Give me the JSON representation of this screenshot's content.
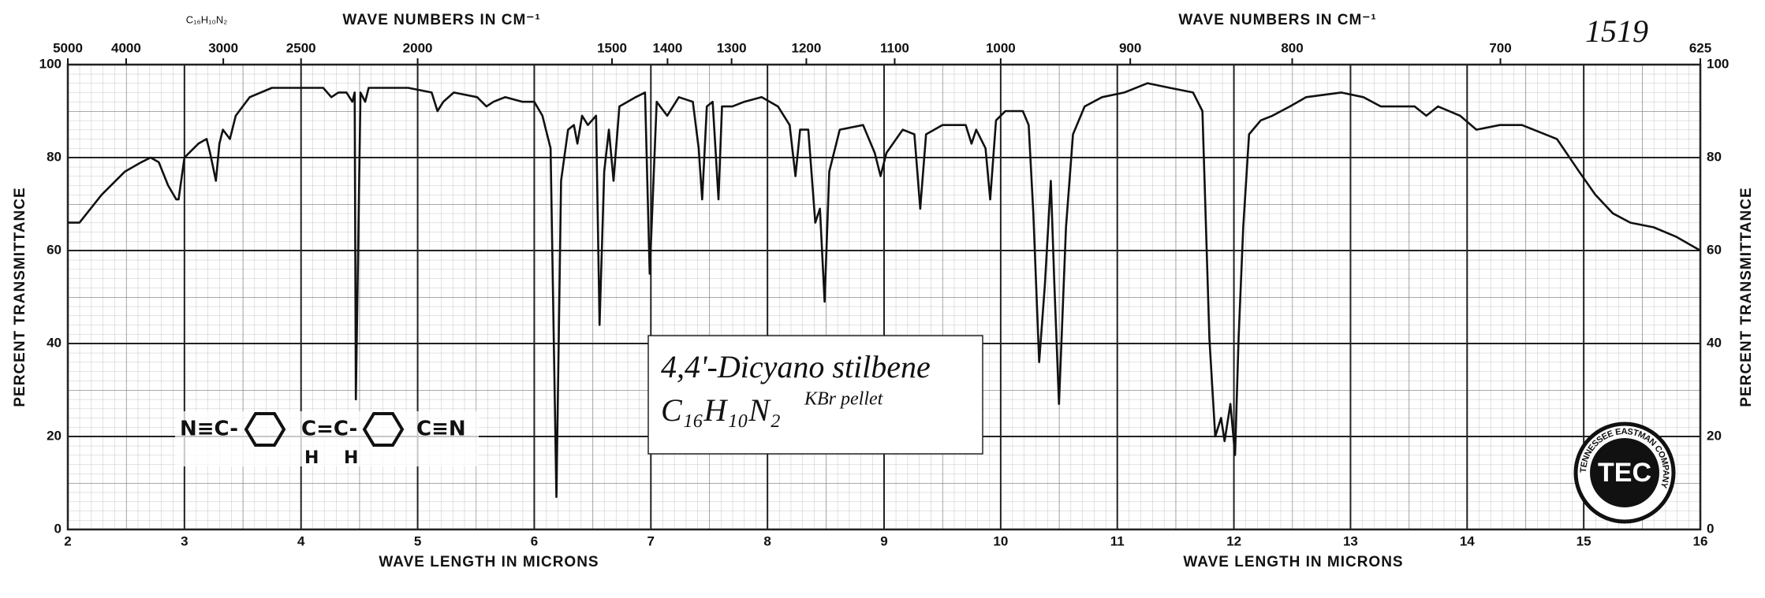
{
  "chart_data": {
    "type": "line",
    "xlabel": "WAVE LENGTH IN MICRONS",
    "x2label": "WAVE NUMBERS IN CM⁻¹",
    "ylabel": "PERCENT TRANSMITTANCE",
    "xlim": [
      2,
      16
    ],
    "xticks": [
      2,
      3,
      4,
      5,
      6,
      7,
      8,
      9,
      10,
      11,
      12,
      13,
      14,
      15,
      16
    ],
    "x2_scale": "reciprocal",
    "x2ticks": [
      5000,
      4000,
      3000,
      2500,
      2000,
      1500,
      1400,
      1300,
      1200,
      1100,
      1000,
      900,
      800,
      700,
      625
    ],
    "ylim": [
      0,
      100
    ],
    "yticks": [
      0,
      20,
      40,
      60,
      80,
      100
    ],
    "grid": true,
    "x": [
      2.0,
      2.1,
      2.29,
      2.49,
      2.63,
      2.71,
      2.78,
      2.86,
      2.93,
      2.95,
      3.0,
      3.12,
      3.19,
      3.22,
      3.27,
      3.3,
      3.33,
      3.39,
      3.44,
      3.56,
      3.75,
      3.97,
      4.19,
      4.26,
      4.32,
      4.39,
      4.44,
      4.46,
      4.47,
      4.51,
      4.55,
      4.58,
      4.92,
      5.12,
      5.17,
      5.22,
      5.31,
      5.51,
      5.59,
      5.65,
      5.75,
      5.9,
      6.0,
      6.07,
      6.14,
      6.19,
      6.23,
      6.29,
      6.34,
      6.37,
      6.41,
      6.46,
      6.53,
      6.56,
      6.6,
      6.64,
      6.68,
      6.73,
      6.87,
      6.95,
      6.99,
      7.05,
      7.14,
      7.24,
      7.36,
      7.41,
      7.44,
      7.48,
      7.53,
      7.58,
      7.61,
      7.7,
      7.8,
      7.95,
      8.09,
      8.19,
      8.24,
      8.28,
      8.35,
      8.41,
      8.45,
      8.49,
      8.53,
      8.62,
      8.82,
      8.92,
      8.97,
      9.02,
      9.16,
      9.26,
      9.31,
      9.36,
      9.5,
      9.7,
      9.75,
      9.79,
      9.87,
      9.91,
      9.96,
      10.04,
      10.19,
      10.24,
      10.28,
      10.33,
      10.38,
      10.43,
      10.46,
      10.5,
      10.56,
      10.62,
      10.72,
      10.87,
      11.06,
      11.26,
      11.45,
      11.65,
      11.73,
      11.79,
      11.84,
      11.89,
      11.92,
      11.97,
      12.01,
      12.04,
      12.08,
      12.13,
      12.23,
      12.33,
      12.48,
      12.62,
      12.92,
      13.11,
      13.26,
      13.4,
      13.55,
      13.65,
      13.75,
      13.94,
      14.08,
      14.28,
      14.47,
      14.77,
      14.96,
      15.1,
      15.25,
      15.4,
      15.6,
      15.79,
      16.0
    ],
    "series": [
      {
        "color": "#111111",
        "values": [
          66,
          66,
          72,
          77,
          79,
          80,
          79,
          74,
          71,
          71,
          80,
          83,
          84,
          81,
          75,
          83,
          86,
          84,
          89,
          93,
          95,
          95,
          95,
          93,
          94,
          94,
          92,
          94,
          28,
          94,
          92,
          95,
          95,
          94,
          90,
          92,
          94,
          93,
          91,
          92,
          93,
          92,
          92,
          89,
          82,
          7,
          75,
          86,
          87,
          83,
          89,
          87,
          89,
          44,
          77,
          86,
          75,
          91,
          93,
          94,
          55,
          92,
          89,
          93,
          92,
          82,
          71,
          91,
          92,
          71,
          91,
          91,
          92,
          93,
          91,
          87,
          76,
          86,
          86,
          66,
          69,
          49,
          77,
          86,
          87,
          81,
          76,
          81,
          86,
          85,
          69,
          85,
          87,
          87,
          83,
          86,
          82,
          71,
          88,
          90,
          90,
          87,
          68,
          36,
          53,
          75,
          53,
          27,
          65,
          85,
          91,
          93,
          94,
          96,
          95,
          94,
          90,
          41,
          20,
          24,
          19,
          27,
          16,
          41,
          65,
          85,
          88,
          89,
          91,
          93,
          94,
          93,
          91,
          91,
          91,
          89,
          91,
          89,
          86,
          87,
          87,
          84,
          77,
          72,
          68,
          66,
          65,
          63,
          60
        ]
      }
    ],
    "annotations": {
      "spectrum_number": "1519",
      "formula_small": "C₁₆H₁₀N₂",
      "compound_name": "4,4'-Dicyano stilbene",
      "formula": "C₁₆H₁₀N₂",
      "sample": "KBr pellet",
      "structure": [
        "N≡C-",
        "C=C-",
        "C≡N"
      ],
      "hydrogens": [
        "H",
        "H"
      ],
      "logo_ring": "TENNESSEE EASTMAN COMPANY",
      "logo": "TEC"
    }
  }
}
